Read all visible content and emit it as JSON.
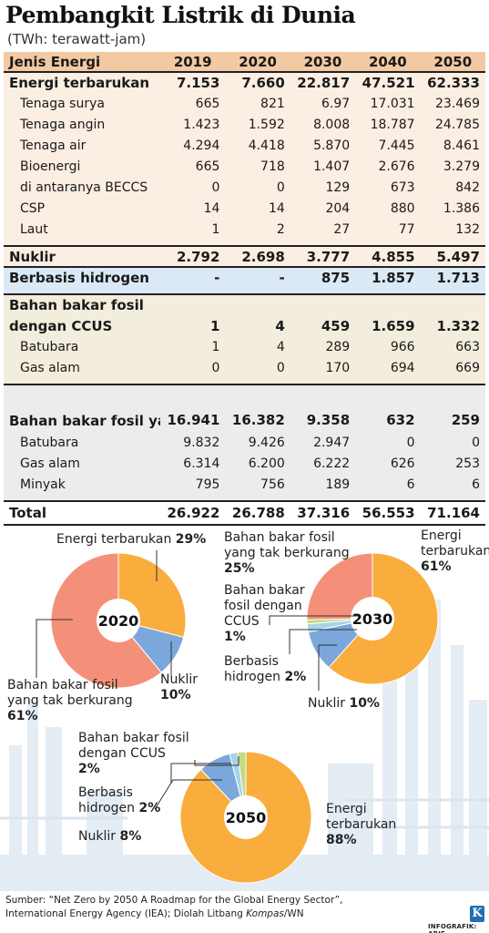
{
  "header": {
    "title": "Pembangkit Listrik di Dunia",
    "subtitle": "(TWh: terawatt-jam)"
  },
  "table": {
    "columns": [
      "Jenis Energi",
      "2019",
      "2020",
      "2030",
      "2040",
      "2050"
    ],
    "rows": [
      {
        "label": "Energi terbarukan",
        "values": [
          "7.153",
          "7.660",
          "22.817",
          "47.521",
          "62.333"
        ]
      },
      {
        "label": "Tenaga surya",
        "values": [
          "665",
          "821",
          "6.97",
          "17.031",
          "23.469"
        ]
      },
      {
        "label": "Tenaga angin",
        "values": [
          "1.423",
          "1.592",
          "8.008",
          "18.787",
          "24.785"
        ]
      },
      {
        "label": "Tenaga air",
        "values": [
          "4.294",
          "4.418",
          "5.870",
          "7.445",
          "8.461"
        ]
      },
      {
        "label": "Bioenergi",
        "values": [
          "665",
          "718",
          "1.407",
          "2.676",
          "3.279"
        ]
      },
      {
        "label": "di antaranya BECCS",
        "values": [
          "0",
          "0",
          "129",
          "673",
          "842"
        ]
      },
      {
        "label": "CSP",
        "values": [
          "14",
          "14",
          "204",
          "880",
          "1.386"
        ]
      },
      {
        "label": "Laut",
        "values": [
          "1",
          "2",
          "27",
          "77",
          "132"
        ]
      },
      {
        "label": "Nuklir",
        "values": [
          "2.792",
          "2.698",
          "3.777",
          "4.855",
          "5.497"
        ]
      },
      {
        "label": "Berbasis hidrogen",
        "values": [
          "-",
          "-",
          "875",
          "1.857",
          "1.713"
        ]
      },
      {
        "label": "Bahan bakar fosil",
        "values": []
      },
      {
        "label": "dengan CCUS",
        "values": [
          "1",
          "4",
          "459",
          "1.659",
          "1.332"
        ]
      },
      {
        "label": "Batubara",
        "values": [
          "1",
          "4",
          "289",
          "966",
          "663"
        ]
      },
      {
        "label": "Gas alam",
        "values": [
          "0",
          "0",
          "170",
          "694",
          "669"
        ]
      },
      {
        "label": "Bahan bakar fosil yang tak berkurang",
        "values": [
          "16.941",
          "16.382",
          "9.358",
          "632",
          "259"
        ]
      },
      {
        "label": "Batubara",
        "values": [
          "9.832",
          "9.426",
          "2.947",
          "0",
          "0"
        ]
      },
      {
        "label": "Gas alam",
        "values": [
          "6.314",
          "6.200",
          "6.222",
          "626",
          "253"
        ]
      },
      {
        "label": "Minyak",
        "values": [
          "795",
          "756",
          "189",
          "6",
          "6"
        ]
      },
      {
        "label": "Total",
        "values": [
          "26.922",
          "26.788",
          "37.316",
          "56.553",
          "71.164"
        ]
      }
    ]
  },
  "colors": {
    "renewable": "#f9ad3c",
    "fossil_unabated": "#f4907a",
    "nuclear": "#7ba7dc",
    "hydrogen": "#a6d4e8",
    "ccus": "#c2dc84",
    "header_bg": "#f2c9a2"
  },
  "chart_data": [
    {
      "type": "pie",
      "center_label": "2020",
      "slices": [
        {
          "name": "Energi terbarukan",
          "value": 29,
          "label": "29%"
        },
        {
          "name": "Nuklir",
          "value": 10,
          "label": "10%"
        },
        {
          "name": "Bahan bakar fosil yang tak berkurang",
          "value": 61,
          "label": "61%"
        }
      ]
    },
    {
      "type": "pie",
      "center_label": "2030",
      "slices": [
        {
          "name": "Energi terbarukan",
          "value": 61,
          "label": "61%"
        },
        {
          "name": "Nuklir",
          "value": 10,
          "label": "10%"
        },
        {
          "name": "Berbasis hidrogen",
          "value": 2,
          "label": "2%"
        },
        {
          "name": "Bahan bakar fosil dengan CCUS",
          "value": 1,
          "label": "1%"
        },
        {
          "name": "Bahan bakar fosil yang tak berkurang",
          "value": 25,
          "label": "25%"
        }
      ]
    },
    {
      "type": "pie",
      "center_label": "2050",
      "slices": [
        {
          "name": "Energi terbarukan",
          "value": 88,
          "label": "88%"
        },
        {
          "name": "Nuklir",
          "value": 8,
          "label": "8%"
        },
        {
          "name": "Berbasis hidrogen",
          "value": 2,
          "label": "2%"
        },
        {
          "name": "Bahan bakar fosil dengan CCUS",
          "value": 2,
          "label": "2%"
        }
      ]
    }
  ],
  "pie_labels": {
    "p2020": {
      "renew": "Energi terbarukan",
      "renew_pct": "29%",
      "nuk1": "Nuklir",
      "nuk_pct": "10%",
      "fos1": "Bahan bakar fosil",
      "fos2": "yang tak berkurang",
      "fos_pct": "61%"
    },
    "p2030": {
      "fos1": "Bahan bakar fosil",
      "fos2": "yang tak berkurang",
      "fos_pct": "25%",
      "ccus1": "Bahan bakar",
      "ccus2": "fosil dengan",
      "ccus3": "CCUS",
      "ccus_pct": "1%",
      "h1": "Berbasis",
      "h2": "hidrogen",
      "h_pct": "2%",
      "nuk": "Nuklir",
      "nuk_pct": "10%",
      "renew1": "Energi",
      "renew2": "terbarukan",
      "renew_pct": "61%"
    },
    "p2050": {
      "ccus1": "Bahan bakar fosil",
      "ccus2": "dengan CCUS",
      "ccus_pct": "2%",
      "h1": "Berbasis",
      "h2": "hidrogen",
      "h_pct": "2%",
      "nuk": "Nuklir",
      "nuk_pct": "8%",
      "renew1": "Energi",
      "renew2": "terbarukan",
      "renew_pct": "88%"
    }
  },
  "footer": {
    "source_prefix": "Sumber: “Net Zero by 2050 A Roadmap for the Global Energy Sector”,",
    "source_line2": "International Energy Agency (IEA); Diolah Litbang",
    "source_italic": "Kompas",
    "source_suffix": "/WN",
    "logo_letter": "K",
    "credit": "INFOGRAFIK: ARIE"
  }
}
